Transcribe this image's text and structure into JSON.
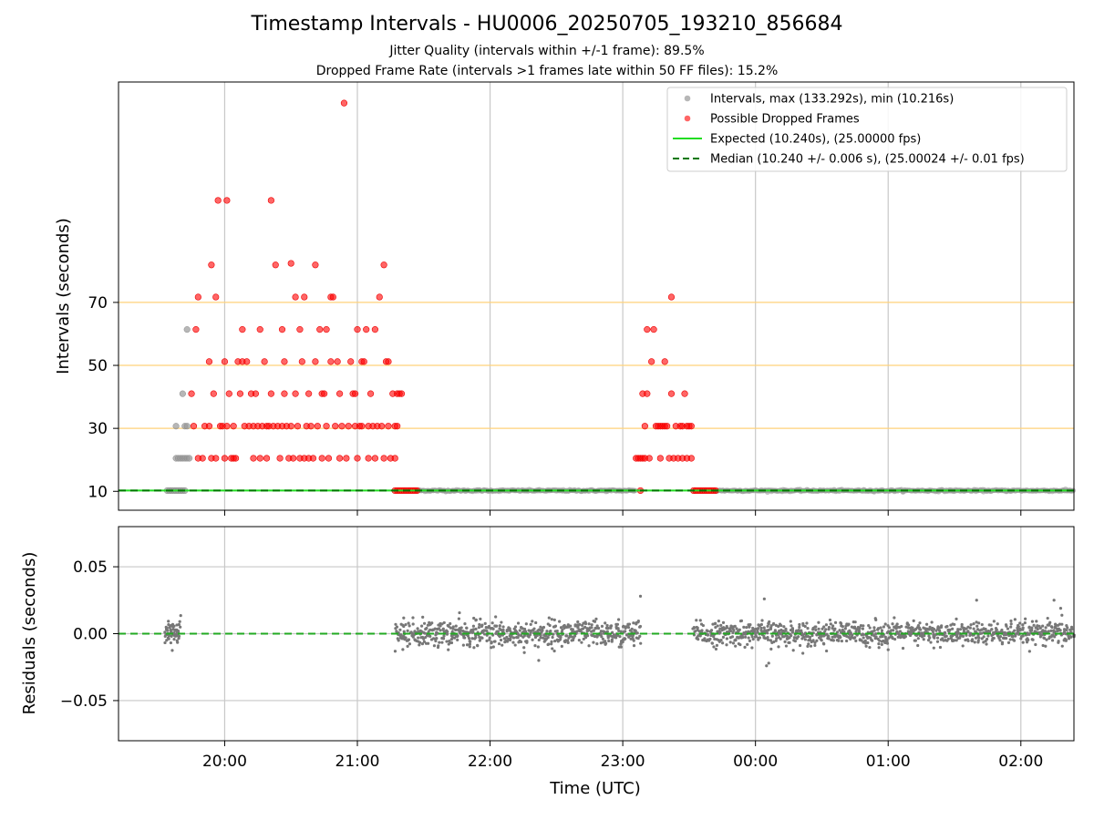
{
  "chart_data": [
    {
      "type": "scatter",
      "title": "Timestamp Intervals - HU0006_20250705_193210_856684",
      "subtitle_lines": [
        "Jitter Quality (intervals within +/-1 frame): 89.5%",
        "Dropped Frame Rate (intervals >1 frames late within 50 FF files): 15.2%"
      ],
      "xlabel": "",
      "ylabel": "Intervals (seconds)",
      "x_ticks": [
        "20:00",
        "21:00",
        "22:00",
        "23:00",
        "00:00",
        "01:00",
        "02:00"
      ],
      "x_range": [
        "19:12",
        "02:24"
      ],
      "ylim": [
        4,
        140
      ],
      "y_ticks": [
        10,
        30,
        50,
        70
      ],
      "grid": true,
      "hlines": [
        {
          "y": 30,
          "color": "#ffd27a"
        },
        {
          "y": 50,
          "color": "#ffd27a"
        },
        {
          "y": 70,
          "color": "#ffd27a"
        }
      ],
      "legend_position": "top-right",
      "series": [
        {
          "name": "Intervals, max (133.292s), min (10.216s)",
          "color": "#999999",
          "points": [
            [
              "19:34",
              10.24
            ],
            [
              "19:35",
              10.24
            ],
            [
              "19:36",
              10.24
            ],
            [
              "19:37",
              10.24
            ],
            [
              "19:38",
              10.24
            ],
            [
              "19:39",
              10.24
            ],
            [
              "19:40",
              10.24
            ],
            [
              "19:41",
              10.24
            ],
            [
              "19:42",
              10.24
            ],
            [
              "19:38",
              20.5
            ],
            [
              "19:39",
              20.5
            ],
            [
              "19:40",
              20.5
            ],
            [
              "19:41",
              20.5
            ],
            [
              "19:42",
              20.5
            ],
            [
              "19:43",
              20.5
            ],
            [
              "19:44",
              20.5
            ],
            [
              "19:38",
              30.7
            ],
            [
              "19:42",
              30.7
            ],
            [
              "19:43",
              30.7
            ],
            [
              "19:41",
              41.0
            ],
            [
              "19:43",
              61.4
            ]
          ]
        },
        {
          "name": "Possible Dropped Frames",
          "color": "#ff0000",
          "points": [
            [
              "19:46",
              30.7
            ],
            [
              "19:48",
              20.5
            ],
            [
              "19:50",
              20.5
            ],
            [
              "19:51",
              30.7
            ],
            [
              "19:53",
              30.7
            ],
            [
              "19:54",
              20.5
            ],
            [
              "19:56",
              20.5
            ],
            [
              "19:45",
              41.0
            ],
            [
              "19:47",
              61.4
            ],
            [
              "19:48",
              71.7
            ],
            [
              "19:53",
              51.2
            ],
            [
              "19:54",
              81.9
            ],
            [
              "19:55",
              41.0
            ],
            [
              "19:56",
              71.7
            ],
            [
              "19:57",
              102.4
            ],
            [
              "19:58",
              30.7
            ],
            [
              "19:59",
              30.7
            ],
            [
              "20:00",
              20.5
            ],
            [
              "20:00",
              51.2
            ],
            [
              "20:01",
              30.7
            ],
            [
              "20:01",
              102.4
            ],
            [
              "20:02",
              41.0
            ],
            [
              "20:03",
              20.5
            ],
            [
              "20:04",
              20.5
            ],
            [
              "20:04",
              30.7
            ],
            [
              "20:05",
              20.5
            ],
            [
              "20:06",
              51.2
            ],
            [
              "20:07",
              41.0
            ],
            [
              "20:08",
              51.2
            ],
            [
              "20:08",
              61.4
            ],
            [
              "20:09",
              30.7
            ],
            [
              "20:10",
              51.2
            ],
            [
              "20:11",
              30.7
            ],
            [
              "20:12",
              41.0
            ],
            [
              "20:13",
              20.5
            ],
            [
              "20:13",
              30.7
            ],
            [
              "20:14",
              41.0
            ],
            [
              "20:15",
              30.7
            ],
            [
              "20:16",
              61.4
            ],
            [
              "20:16",
              20.5
            ],
            [
              "20:17",
              30.7
            ],
            [
              "20:18",
              51.2
            ],
            [
              "20:19",
              20.5
            ],
            [
              "20:19",
              30.7
            ],
            [
              "20:20",
              30.7
            ],
            [
              "20:21",
              41.0
            ],
            [
              "20:21",
              102.4
            ],
            [
              "20:22",
              30.7
            ],
            [
              "20:23",
              81.9
            ],
            [
              "20:24",
              30.7
            ],
            [
              "20:25",
              20.5
            ],
            [
              "20:26",
              30.7
            ],
            [
              "20:26",
              61.4
            ],
            [
              "20:27",
              41.0
            ],
            [
              "20:27",
              51.2
            ],
            [
              "20:28",
              30.7
            ],
            [
              "20:29",
              20.5
            ],
            [
              "20:30",
              82.4
            ],
            [
              "20:30",
              30.7
            ],
            [
              "20:31",
              20.5
            ],
            [
              "20:32",
              71.7
            ],
            [
              "20:32",
              41.0
            ],
            [
              "20:33",
              30.7
            ],
            [
              "20:34",
              61.4
            ],
            [
              "20:34",
              20.5
            ],
            [
              "20:35",
              51.2
            ],
            [
              "20:36",
              71.7
            ],
            [
              "20:36",
              20.5
            ],
            [
              "20:37",
              30.7
            ],
            [
              "20:38",
              41.0
            ],
            [
              "20:38",
              20.5
            ],
            [
              "20:39",
              30.7
            ],
            [
              "20:40",
              20.5
            ],
            [
              "20:41",
              51.2
            ],
            [
              "20:41",
              81.9
            ],
            [
              "20:42",
              30.7
            ],
            [
              "20:43",
              61.4
            ],
            [
              "20:44",
              41.0
            ],
            [
              "20:44",
              20.5
            ],
            [
              "20:45",
              41.0
            ],
            [
              "20:46",
              30.7
            ],
            [
              "20:46",
              61.4
            ],
            [
              "20:47",
              20.5
            ],
            [
              "20:48",
              71.7
            ],
            [
              "20:48",
              51.2
            ],
            [
              "20:49",
              71.7
            ],
            [
              "20:50",
              30.7
            ],
            [
              "20:51",
              51.2
            ],
            [
              "20:52",
              41.0
            ],
            [
              "20:52",
              20.5
            ],
            [
              "20:53",
              30.7
            ],
            [
              "20:54",
              133.3
            ],
            [
              "20:55",
              20.5
            ],
            [
              "20:56",
              30.7
            ],
            [
              "20:57",
              51.2
            ],
            [
              "20:58",
              41.0
            ],
            [
              "20:59",
              41.0
            ],
            [
              "20:59",
              30.7
            ],
            [
              "21:00",
              61.4
            ],
            [
              "21:00",
              20.5
            ],
            [
              "21:01",
              30.7
            ],
            [
              "21:02",
              51.2
            ],
            [
              "21:02",
              30.7
            ],
            [
              "21:03",
              51.2
            ],
            [
              "21:04",
              61.4
            ],
            [
              "21:05",
              20.5
            ],
            [
              "21:05",
              30.7
            ],
            [
              "21:06",
              41.0
            ],
            [
              "21:07",
              30.7
            ],
            [
              "21:08",
              61.4
            ],
            [
              "21:08",
              20.5
            ],
            [
              "21:09",
              30.7
            ],
            [
              "21:10",
              71.7
            ],
            [
              "21:11",
              30.7
            ],
            [
              "21:12",
              81.9
            ],
            [
              "21:12",
              20.5
            ],
            [
              "21:13",
              51.2
            ],
            [
              "21:14",
              30.7
            ],
            [
              "21:14",
              51.2
            ],
            [
              "21:15",
              20.5
            ],
            [
              "21:16",
              41.0
            ],
            [
              "21:17",
              20.5
            ],
            [
              "21:17",
              30.7
            ],
            [
              "21:18",
              30.7
            ],
            [
              "21:18",
              41.0
            ],
            [
              "21:19",
              41.0
            ],
            [
              "21:20",
              41.0
            ],
            [
              "23:06",
              20.5
            ],
            [
              "23:07",
              20.5
            ],
            [
              "23:08",
              20.5
            ],
            [
              "23:09",
              20.5
            ],
            [
              "23:09",
              41.0
            ],
            [
              "23:10",
              20.5
            ],
            [
              "23:10",
              30.7
            ],
            [
              "23:11",
              41.0
            ],
            [
              "23:11",
              61.4
            ],
            [
              "23:12",
              20.5
            ],
            [
              "23:13",
              51.2
            ],
            [
              "23:14",
              61.4
            ],
            [
              "23:15",
              30.7
            ],
            [
              "23:16",
              30.7
            ],
            [
              "23:17",
              30.7
            ],
            [
              "23:17",
              20.5
            ],
            [
              "23:18",
              30.7
            ],
            [
              "23:19",
              51.2
            ],
            [
              "23:19",
              30.7
            ],
            [
              "23:20",
              30.7
            ],
            [
              "23:21",
              20.5
            ],
            [
              "23:22",
              41.0
            ],
            [
              "23:22",
              71.7
            ],
            [
              "23:23",
              20.5
            ],
            [
              "23:24",
              30.7
            ],
            [
              "23:25",
              20.5
            ],
            [
              "23:26",
              30.7
            ],
            [
              "23:27",
              20.5
            ],
            [
              "23:27",
              30.7
            ],
            [
              "23:28",
              41.0
            ],
            [
              "23:29",
              30.7
            ],
            [
              "23:29",
              20.5
            ],
            [
              "23:30",
              30.7
            ],
            [
              "23:31",
              20.5
            ],
            [
              "23:31",
              30.7
            ],
            [
              "21:17",
              10.24
            ],
            [
              "21:18",
              10.24
            ],
            [
              "21:19",
              10.24
            ],
            [
              "21:20",
              10.24
            ],
            [
              "21:21",
              10.24
            ],
            [
              "21:22",
              10.24
            ],
            [
              "21:23",
              10.24
            ],
            [
              "21:24",
              10.24
            ],
            [
              "21:25",
              10.24
            ],
            [
              "21:26",
              10.24
            ],
            [
              "21:27",
              10.24
            ],
            [
              "23:08",
              10.24
            ],
            [
              "23:32",
              10.24
            ],
            [
              "23:33",
              10.24
            ],
            [
              "23:34",
              10.24
            ],
            [
              "23:35",
              10.24
            ],
            [
              "23:36",
              10.24
            ],
            [
              "23:37",
              10.24
            ],
            [
              "23:38",
              10.24
            ],
            [
              "23:39",
              10.24
            ],
            [
              "23:40",
              10.24
            ],
            [
              "23:41",
              10.24
            ],
            [
              "23:42",
              10.24
            ]
          ]
        },
        {
          "name": "Expected (10.240s), (25.00000 fps)",
          "color": "#22dd22",
          "y": 10.24
        },
        {
          "name": "Median (10.240 +/- 0.006 s), (25.00024 +/- 0.01 fps)",
          "color": "#007700",
          "y": 10.24
        }
      ],
      "dense_segments": [
        {
          "from": "21:27",
          "to": "23:06",
          "y": 10.24
        },
        {
          "from": "23:42",
          "to": "02:24",
          "y": 10.24
        }
      ]
    },
    {
      "type": "scatter",
      "xlabel": "Time (UTC)",
      "ylabel": "Residuals (seconds)",
      "x_ticks": [
        "20:00",
        "21:00",
        "22:00",
        "23:00",
        "00:00",
        "01:00",
        "02:00"
      ],
      "x_range": [
        "19:12",
        "02:24"
      ],
      "ylim": [
        -0.08,
        0.08
      ],
      "y_ticks": [
        0.05,
        0.0,
        -0.05
      ],
      "y_tick_labels": [
        "0.05",
        "0.00",
        "−0.05"
      ],
      "grid": true,
      "series": [
        {
          "name": "",
          "color": "#777777",
          "description_segments": [
            {
              "from": "19:33",
              "to": "19:40",
              "spread": 0.008
            },
            {
              "from": "21:17",
              "to": "23:08",
              "spread": 0.009
            },
            {
              "from": "23:32",
              "to": "02:24",
              "spread": 0.008
            }
          ],
          "outliers": [
            [
              "23:08",
              0.028
            ],
            [
              "00:04",
              0.026
            ],
            [
              "00:05",
              -0.024
            ],
            [
              "00:06",
              -0.022
            ],
            [
              "01:00",
              -0.012
            ],
            [
              "01:40",
              0.025
            ],
            [
              "02:15",
              0.025
            ],
            [
              "02:18",
              0.019
            ],
            [
              "22:22",
              -0.02
            ]
          ]
        },
        {
          "name": "",
          "color": "#22aa22",
          "y": 0.0
        }
      ]
    }
  ]
}
